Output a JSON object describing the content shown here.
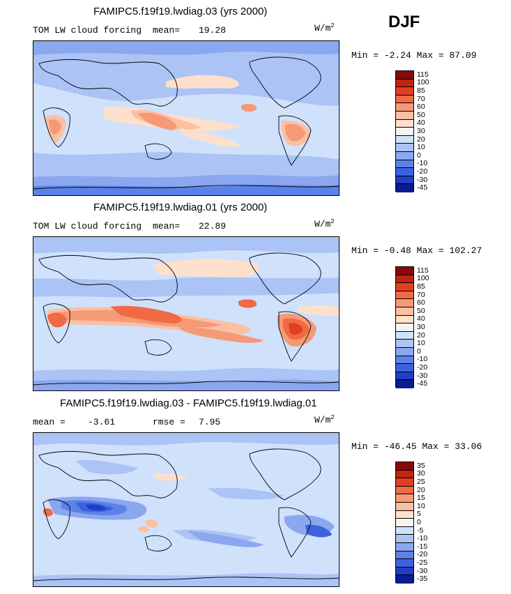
{
  "season": "DJF",
  "units_base": "W/m",
  "units_exp": "2",
  "chart_data": [
    {
      "type": "heatmap",
      "title": "FAMIPC5.f19f19.lwdiag.03 (yrs 2000)",
      "variable": "TOM LW cloud forcing",
      "stat1_label": "mean=",
      "stat1_value": "19.28",
      "min_label": "Min =",
      "min_value": "-2.24",
      "max_label": "Max =",
      "max_value": "87.09",
      "levels": [
        "115",
        "100",
        "85",
        "70",
        "60",
        "50",
        "40",
        "30",
        "20",
        "10",
        "0",
        "-10",
        "-20",
        "-30",
        "-45"
      ],
      "colors": [
        "#8a0a0a",
        "#c1250f",
        "#e0401f",
        "#f06a44",
        "#f59977",
        "#fbbfa2",
        "#fde0cc",
        "#f6f4ef",
        "#cfe1fb",
        "#abc3f5",
        "#8aa7ef",
        "#5b82e8",
        "#3d62de",
        "#1f3fc9",
        "#0a1a8f"
      ]
    },
    {
      "type": "heatmap",
      "title": "FAMIPC5.f19f19.lwdiag.01 (yrs 2000)",
      "variable": "TOM LW cloud forcing",
      "stat1_label": "mean=",
      "stat1_value": "22.89",
      "min_label": "Min =",
      "min_value": "-0.48",
      "max_label": "Max =",
      "max_value": "102.27",
      "levels": [
        "115",
        "100",
        "85",
        "70",
        "60",
        "50",
        "40",
        "30",
        "20",
        "10",
        "0",
        "-10",
        "-20",
        "-30",
        "-45"
      ],
      "colors": [
        "#8a0a0a",
        "#c1250f",
        "#e0401f",
        "#f06a44",
        "#f59977",
        "#fbbfa2",
        "#fde0cc",
        "#f6f4ef",
        "#cfe1fb",
        "#abc3f5",
        "#8aa7ef",
        "#5b82e8",
        "#3d62de",
        "#1f3fc9",
        "#0a1a8f"
      ]
    },
    {
      "type": "heatmap",
      "title": "FAMIPC5.f19f19.lwdiag.03 - FAMIPC5.f19f19.lwdiag.01",
      "stat1_label": "mean =",
      "stat1_value": "-3.61",
      "stat2_label": "rmse =",
      "stat2_value": "7.95",
      "min_label": "Min =",
      "min_value": "-46.45",
      "max_label": "Max =",
      "max_value": "33.06",
      "levels": [
        "35",
        "30",
        "25",
        "20",
        "15",
        "10",
        "5",
        "0",
        "-5",
        "-10",
        "-15",
        "-20",
        "-25",
        "-30",
        "-35"
      ],
      "colors": [
        "#8a0a0a",
        "#c1250f",
        "#e0401f",
        "#f06a44",
        "#f59977",
        "#fbbfa2",
        "#fde0cc",
        "#f6f4ef",
        "#cfe1fb",
        "#abc3f5",
        "#8aa7ef",
        "#5b82e8",
        "#3d62de",
        "#1f3fc9",
        "#0a1a8f"
      ]
    }
  ]
}
